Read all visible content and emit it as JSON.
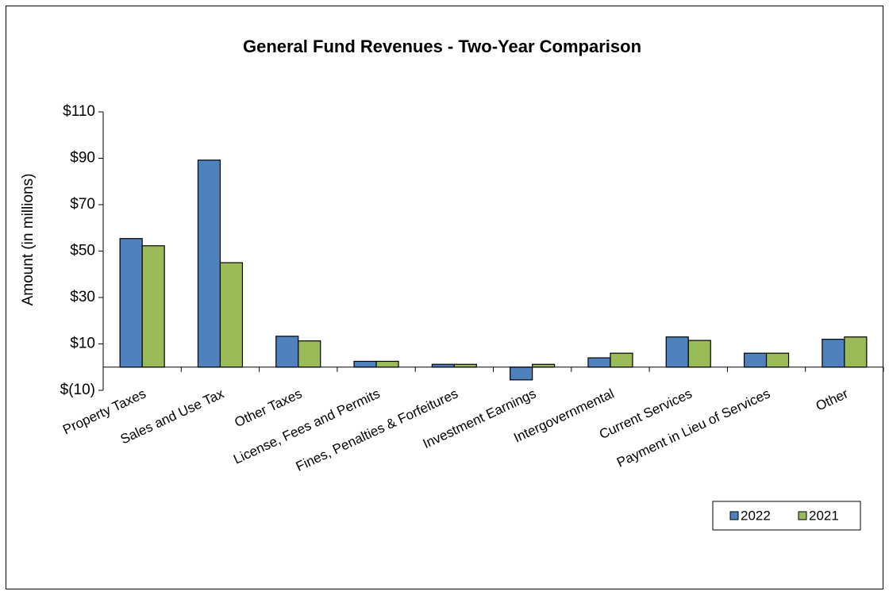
{
  "chart_data": {
    "type": "bar",
    "title": "General Fund Revenues - Two-Year Comparison",
    "y_label": "Amount (in millions)",
    "categories": [
      "Property Taxes",
      "Sales and Use Tax",
      "Other Taxes",
      "License, Fees and Permits",
      "Fines, Penalties & Forfeitures",
      "Investment Earnings",
      "Intergovernmental",
      "Current Services",
      "Payment in Lieu of Services",
      "Other"
    ],
    "series": [
      {
        "name": "2022",
        "color": "#4f81bd",
        "values": [
          55.4,
          89.2,
          13.3,
          2.5,
          1.2,
          -5.5,
          4,
          13,
          6,
          12
        ]
      },
      {
        "name": "2021",
        "color": "#9bbb59",
        "values": [
          52.3,
          45,
          11.3,
          2.5,
          1.2,
          1.2,
          6,
          11.5,
          6,
          13
        ]
      }
    ],
    "ylim": [
      -10,
      110
    ],
    "yticks": [
      {
        "value": -10,
        "label": "$(10)"
      },
      {
        "value": 10,
        "label": "$10"
      },
      {
        "value": 30,
        "label": "$30"
      },
      {
        "value": 50,
        "label": "$50"
      },
      {
        "value": 70,
        "label": "$70"
      },
      {
        "value": 90,
        "label": "$90"
      },
      {
        "value": 110,
        "label": "$110"
      }
    ],
    "legend": "bottom-right"
  }
}
